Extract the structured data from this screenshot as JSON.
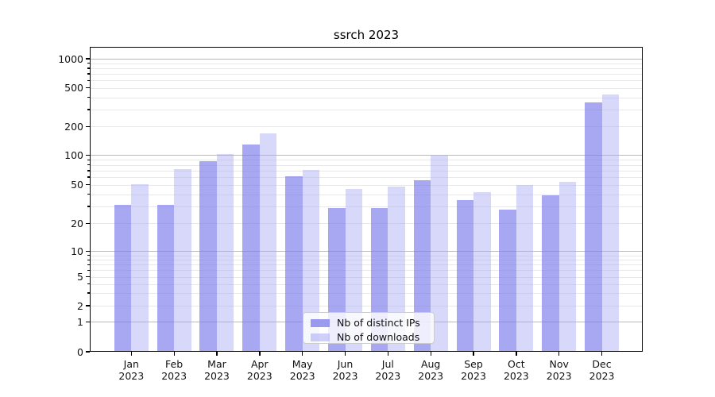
{
  "figure": {
    "background": "#ffffff"
  },
  "chart_data": {
    "type": "bar",
    "title": "ssrch 2023",
    "categories": [
      "Jan",
      "Feb",
      "Mar",
      "Apr",
      "May",
      "Jun",
      "Jul",
      "Aug",
      "Sep",
      "Oct",
      "Nov",
      "Dec"
    ],
    "x_year_label": "2023",
    "series": [
      {
        "name": "Nb of distinct IPs",
        "color": "#7979eb",
        "alpha": 0.65,
        "values": [
          31,
          31,
          87,
          131,
          61,
          29,
          29,
          56,
          35,
          28,
          39,
          355
        ]
      },
      {
        "name": "Nb of downloads",
        "color": "#a8a8f4",
        "alpha": 0.45,
        "values": [
          51,
          72,
          103,
          170,
          71,
          45,
          48,
          100,
          42,
          50,
          54,
          425
        ]
      }
    ],
    "yscale": "symlog",
    "ylim": [
      0,
      1300
    ],
    "y_tick_labels": [
      "0",
      "1",
      "2",
      "5",
      "10",
      "20",
      "50",
      "100",
      "200",
      "500",
      "1000"
    ],
    "grid": "both",
    "legend_position": "lower center",
    "grid_major_color": "#b9b9b9",
    "grid_minor_color": "#e8e8e8",
    "axis_color": "#000000",
    "text_color": "#111111"
  }
}
